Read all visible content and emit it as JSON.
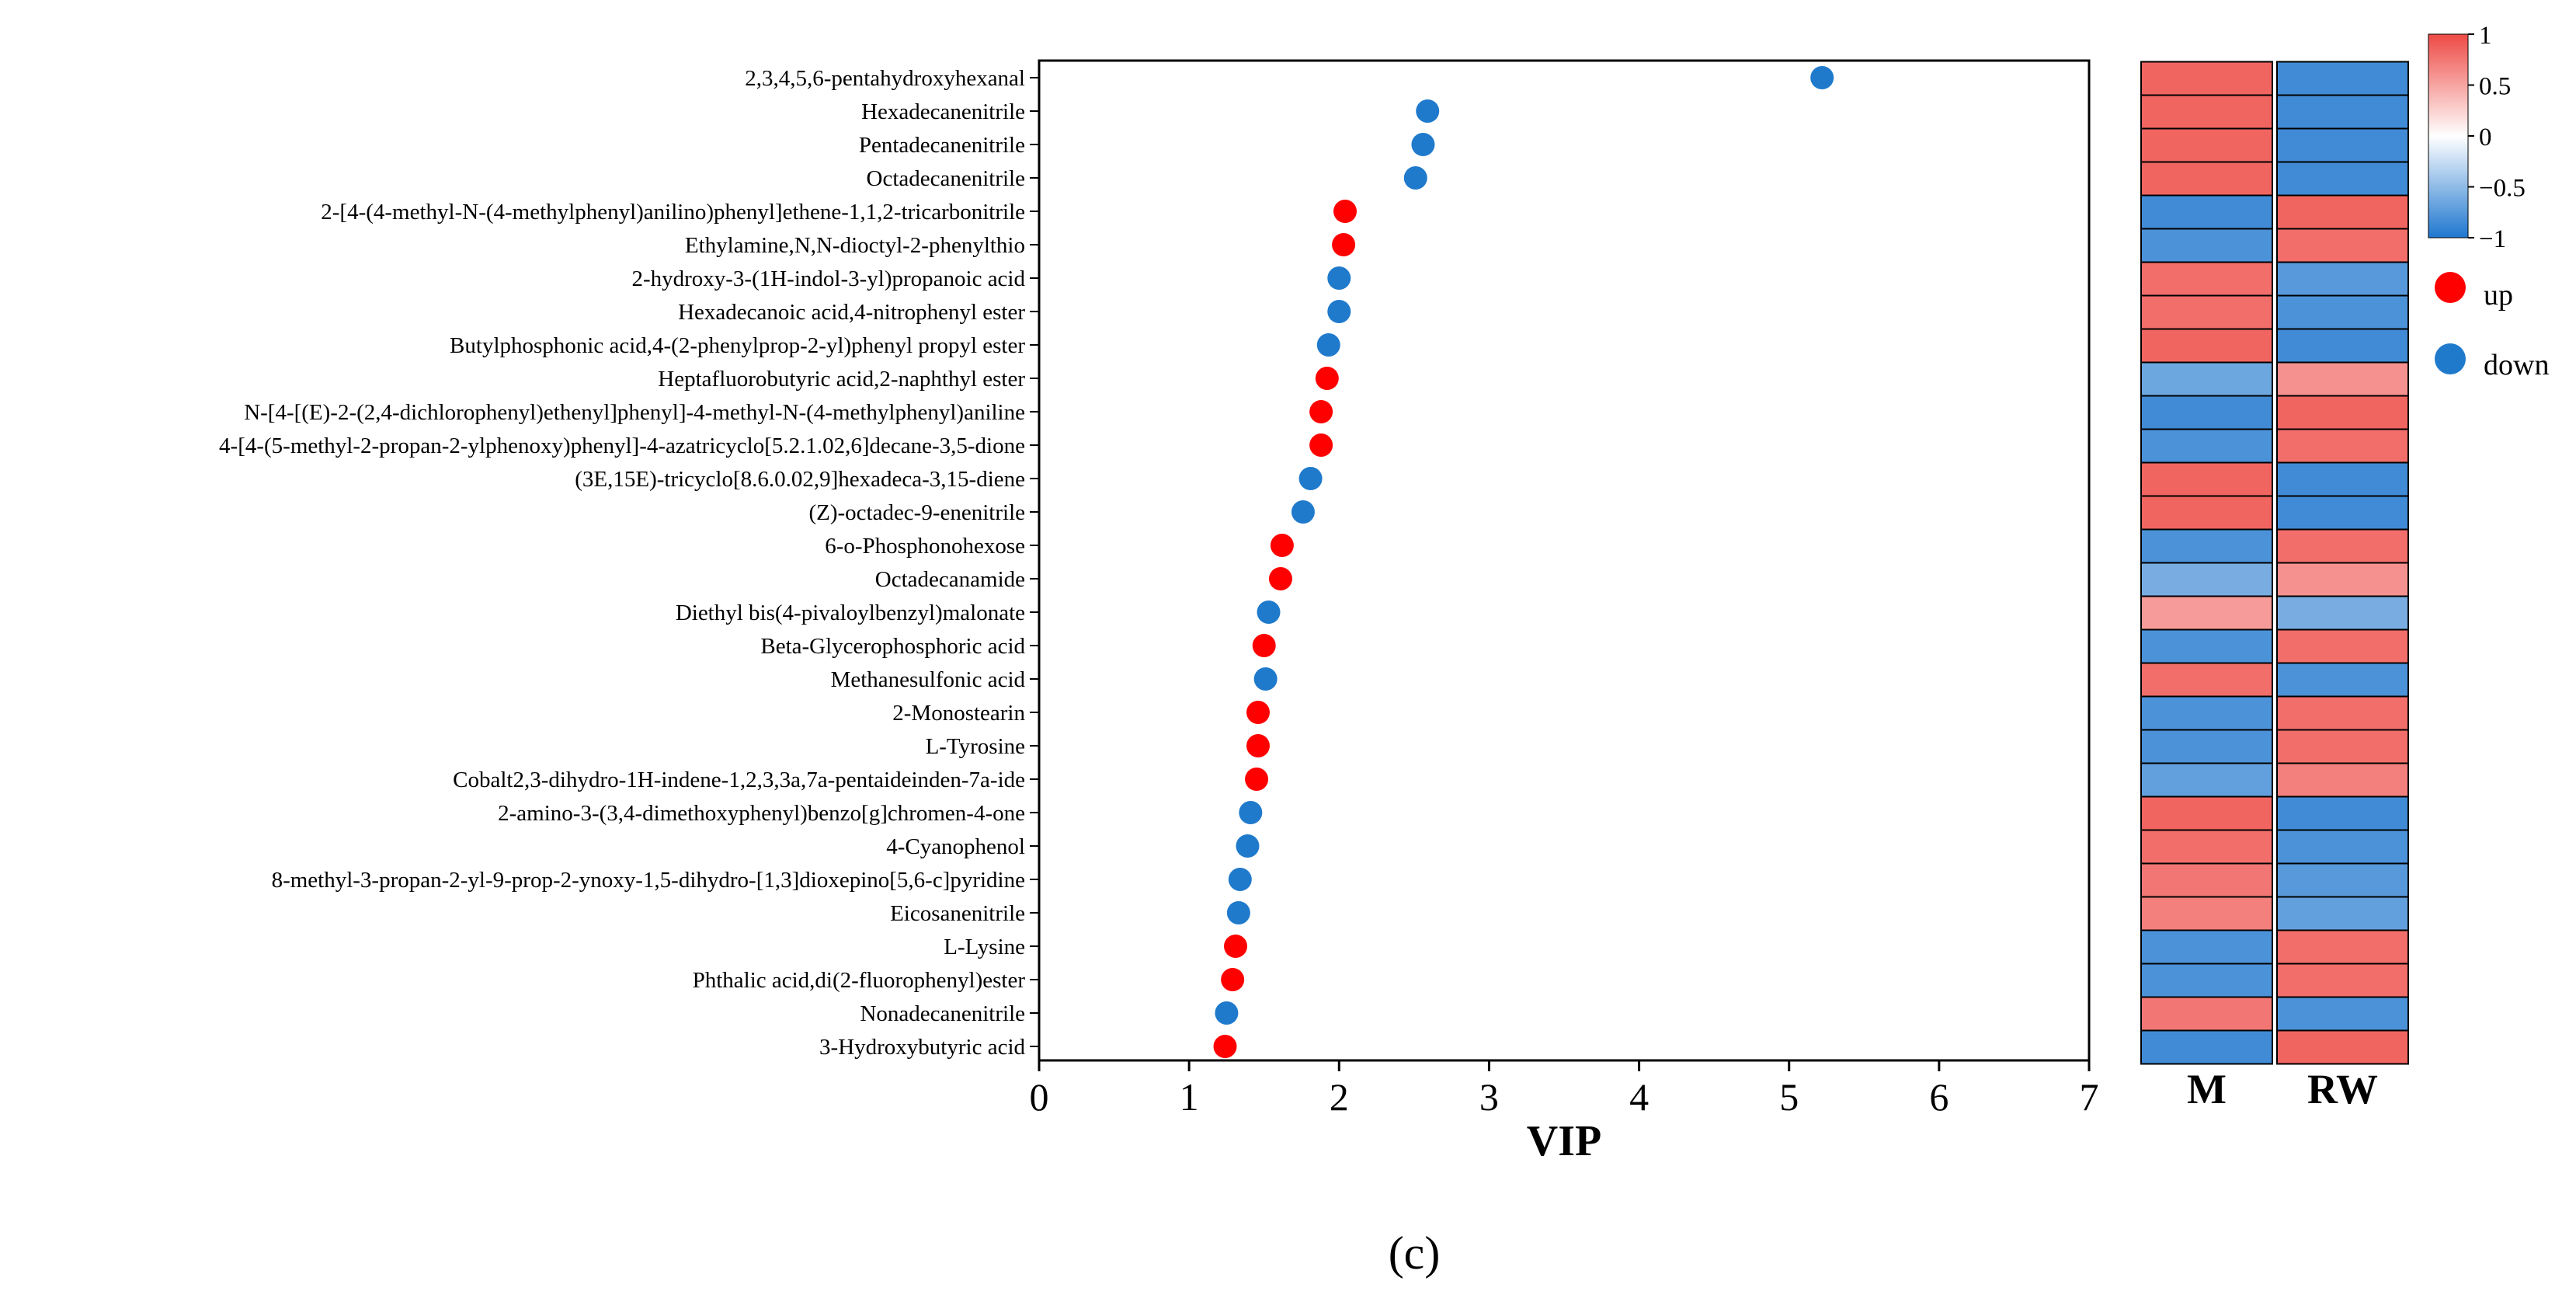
{
  "chart_data": {
    "type": "scatter",
    "xlabel": "VIP",
    "xlim": [
      0,
      7
    ],
    "xticks": [
      "0",
      "1",
      "2",
      "3",
      "4",
      "5",
      "6",
      "7"
    ],
    "grid": false,
    "metabolites": [
      {
        "name": "2,3,4,5,6-pentahydroxyhexanal",
        "vip": 5.22,
        "trend": "down",
        "M": 0.85,
        "RW": -0.85
      },
      {
        "name": "Hexadecanenitrile",
        "vip": 2.59,
        "trend": "down",
        "M": 0.85,
        "RW": -0.85
      },
      {
        "name": "Pentadecanenitrile",
        "vip": 2.56,
        "trend": "down",
        "M": 0.85,
        "RW": -0.85
      },
      {
        "name": "Octadecanenitrile",
        "vip": 2.51,
        "trend": "down",
        "M": 0.85,
        "RW": -0.85
      },
      {
        "name": "2-[4-(4-methyl-N-(4-methylphenyl)anilino)phenyl]ethene-1,1,2-tricarbonitrile",
        "vip": 2.04,
        "trend": "up",
        "M": -0.85,
        "RW": 0.85
      },
      {
        "name": "Ethylamine,N,N-dioctyl-2-phenylthio",
        "vip": 2.03,
        "trend": "up",
        "M": -0.8,
        "RW": 0.8
      },
      {
        "name": "2-hydroxy-3-(1H-indol-3-yl)propanoic acid",
        "vip": 2.0,
        "trend": "down",
        "M": 0.8,
        "RW": -0.75
      },
      {
        "name": "Hexadecanoic acid,4-nitrophenyl ester",
        "vip": 2.0,
        "trend": "down",
        "M": 0.8,
        "RW": -0.8
      },
      {
        "name": "Butylphosphonic acid,4-(2-phenylprop-2-yl)phenyl propyl ester",
        "vip": 1.93,
        "trend": "down",
        "M": 0.85,
        "RW": -0.85
      },
      {
        "name": "Heptafluorobutyric acid,2-naphthyl ester",
        "vip": 1.92,
        "trend": "up",
        "M": -0.65,
        "RW": 0.6
      },
      {
        "name": "N-[4-[(E)-2-(2,4-dichlorophenyl)ethenyl]phenyl]-4-methyl-N-(4-methylphenyl)aniline",
        "vip": 1.88,
        "trend": "up",
        "M": -0.85,
        "RW": 0.85
      },
      {
        "name": "4-[4-(5-methyl-2-propan-2-ylphenoxy)phenyl]-4-azatricyclo[5.2.1.02,6]decane-3,5-dione",
        "vip": 1.88,
        "trend": "up",
        "M": -0.8,
        "RW": 0.8
      },
      {
        "name": "(3E,15E)-tricyclo[8.6.0.02,9]hexadeca-3,15-diene",
        "vip": 1.81,
        "trend": "down",
        "M": 0.85,
        "RW": -0.85
      },
      {
        "name": "(Z)-octadec-9-enenitrile",
        "vip": 1.76,
        "trend": "down",
        "M": 0.85,
        "RW": -0.85
      },
      {
        "name": "6-o-Phosphonohexose",
        "vip": 1.62,
        "trend": "up",
        "M": -0.8,
        "RW": 0.8
      },
      {
        "name": "Octadecanamide",
        "vip": 1.61,
        "trend": "up",
        "M": -0.6,
        "RW": 0.6
      },
      {
        "name": "Diethyl bis(4-pivaloylbenzyl)malonate",
        "vip": 1.53,
        "trend": "down",
        "M": 0.55,
        "RW": -0.6
      },
      {
        "name": "Beta-Glycerophosphoric acid",
        "vip": 1.5,
        "trend": "up",
        "M": -0.8,
        "RW": 0.8
      },
      {
        "name": "Methanesulfonic acid",
        "vip": 1.51,
        "trend": "down",
        "M": 0.8,
        "RW": -0.8
      },
      {
        "name": "2-Monostearin",
        "vip": 1.46,
        "trend": "up",
        "M": -0.8,
        "RW": 0.8
      },
      {
        "name": "L-Tyrosine",
        "vip": 1.46,
        "trend": "up",
        "M": -0.8,
        "RW": 0.8
      },
      {
        "name": "Cobalt2,3-dihydro-1H-indene-1,2,3,3a,7a-pentaideinden-7a-ide",
        "vip": 1.45,
        "trend": "up",
        "M": -0.7,
        "RW": 0.7
      },
      {
        "name": "2-amino-3-(3,4-dimethoxyphenyl)benzo[g]chromen-4-one",
        "vip": 1.41,
        "trend": "down",
        "M": 0.85,
        "RW": -0.85
      },
      {
        "name": "4-Cyanophenol",
        "vip": 1.39,
        "trend": "down",
        "M": 0.8,
        "RW": -0.8
      },
      {
        "name": "8-methyl-3-propan-2-yl-9-prop-2-ynoxy-1,5-dihydro-[1,3]dioxepino[5,6-c]pyridine",
        "vip": 1.34,
        "trend": "down",
        "M": 0.75,
        "RW": -0.75
      },
      {
        "name": "Eicosanenitrile",
        "vip": 1.33,
        "trend": "down",
        "M": 0.7,
        "RW": -0.7
      },
      {
        "name": "L-Lysine",
        "vip": 1.31,
        "trend": "up",
        "M": -0.8,
        "RW": 0.8
      },
      {
        "name": "Phthalic acid,di(2-fluorophenyl)ester",
        "vip": 1.29,
        "trend": "up",
        "M": -0.8,
        "RW": 0.8
      },
      {
        "name": "Nonadecanenitrile",
        "vip": 1.25,
        "trend": "down",
        "M": 0.75,
        "RW": -0.8
      },
      {
        "name": "3-Hydroxybutyric acid",
        "vip": 1.24,
        "trend": "up",
        "M": -0.85,
        "RW": 0.85
      }
    ],
    "heatmap": {
      "columns": [
        "M",
        "RW"
      ],
      "range": [
        -1,
        1
      ],
      "colorbar_ticks": [
        "1",
        "0.5",
        "0",
        "−0.5",
        "−1"
      ]
    },
    "legend": {
      "placement": "right",
      "entries": [
        {
          "label": "up",
          "color": "#ff0000"
        },
        {
          "label": "down",
          "color": "#1f7acc"
        }
      ]
    },
    "panel_label": "(c)"
  },
  "colors": {
    "up": "#ff0000",
    "down": "#1f7acc",
    "heat_high": "#ee4a45",
    "heat_mid": "#ffffff",
    "heat_low": "#1f77cf"
  }
}
